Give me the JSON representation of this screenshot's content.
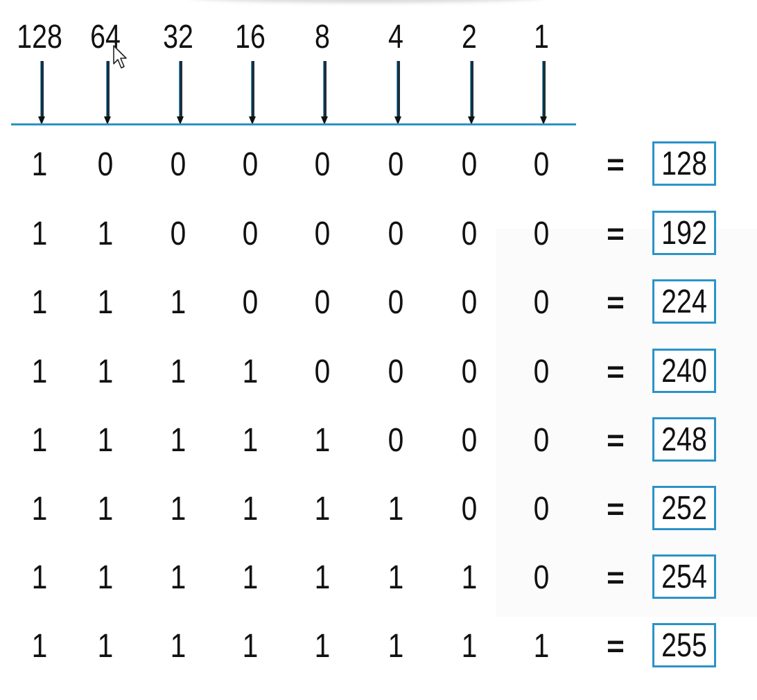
{
  "weights": [
    "128",
    "64",
    "32",
    "16",
    "8",
    "4",
    "2",
    "1"
  ],
  "equals_sign": "=",
  "rows": [
    {
      "bits": [
        "1",
        "0",
        "0",
        "0",
        "0",
        "0",
        "0",
        "0"
      ],
      "result": "128"
    },
    {
      "bits": [
        "1",
        "1",
        "0",
        "0",
        "0",
        "0",
        "0",
        "0"
      ],
      "result": "192"
    },
    {
      "bits": [
        "1",
        "1",
        "1",
        "0",
        "0",
        "0",
        "0",
        "0"
      ],
      "result": "224"
    },
    {
      "bits": [
        "1",
        "1",
        "1",
        "1",
        "0",
        "0",
        "0",
        "0"
      ],
      "result": "240"
    },
    {
      "bits": [
        "1",
        "1",
        "1",
        "1",
        "1",
        "0",
        "0",
        "0"
      ],
      "result": "248"
    },
    {
      "bits": [
        "1",
        "1",
        "1",
        "1",
        "1",
        "1",
        "0",
        "0"
      ],
      "result": "252"
    },
    {
      "bits": [
        "1",
        "1",
        "1",
        "1",
        "1",
        "1",
        "1",
        "0"
      ],
      "result": "254"
    },
    {
      "bits": [
        "1",
        "1",
        "1",
        "1",
        "1",
        "1",
        "1",
        "1"
      ],
      "result": "255"
    }
  ],
  "colors": {
    "accent": "#2b93c7",
    "text": "#111111",
    "arrow": "#1d2f3c"
  },
  "icons": {
    "cursor": "mouse-pointer-icon",
    "arrow": "down-arrow-icon"
  }
}
